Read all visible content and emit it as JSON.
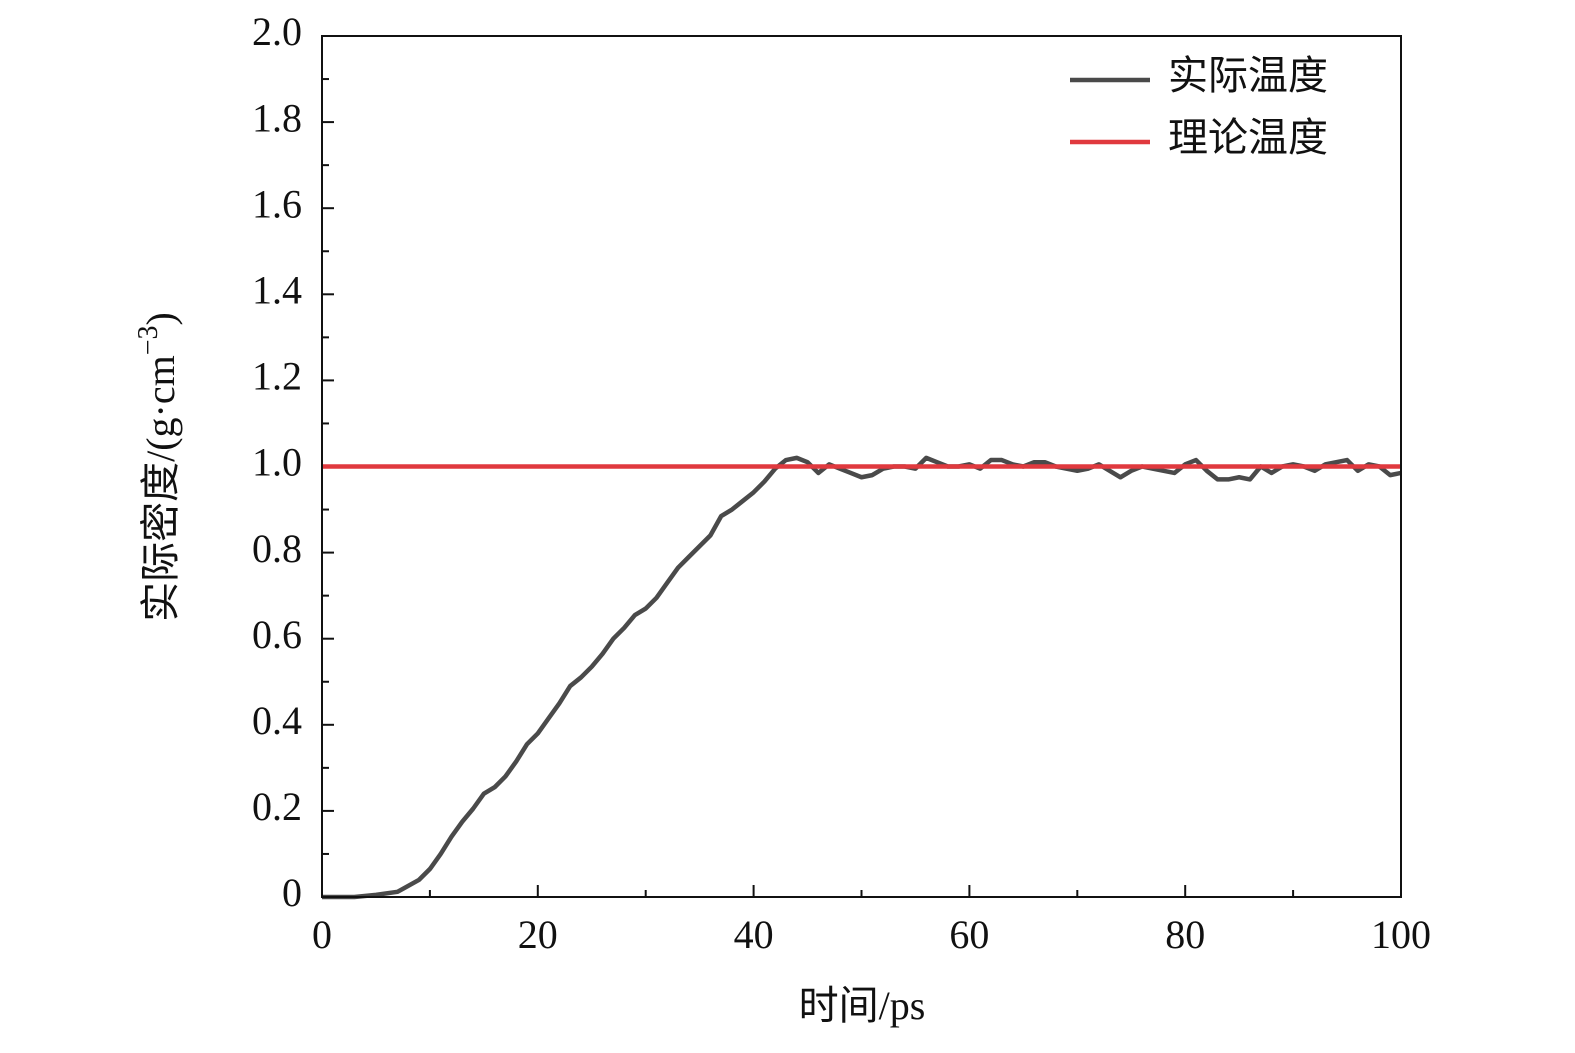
{
  "chart_data": {
    "type": "line",
    "xlabel": "时间/ps",
    "ylabel": [
      "实际密度/(g·cm",
      "−3",
      ")"
    ],
    "x": [
      0,
      3,
      5,
      7,
      9,
      10,
      11,
      12,
      13,
      14,
      15,
      16,
      17,
      18,
      19,
      20,
      21,
      22,
      23,
      24,
      25,
      26,
      27,
      28,
      29,
      30,
      31,
      32,
      33,
      34,
      35,
      36,
      37,
      38,
      39,
      40,
      41,
      42,
      43,
      44,
      45,
      46,
      47,
      48,
      49,
      50,
      51,
      52,
      53,
      54,
      55,
      56,
      57,
      58,
      59,
      60,
      61,
      62,
      63,
      64,
      65,
      66,
      67,
      68,
      69,
      70,
      71,
      72,
      73,
      74,
      75,
      76,
      77,
      78,
      79,
      80,
      81,
      82,
      83,
      84,
      85,
      86,
      87,
      88,
      89,
      90,
      91,
      92,
      93,
      94,
      95,
      96,
      97,
      98,
      99,
      100
    ],
    "series": [
      {
        "name": "实际温度",
        "color": "#4a4a4a",
        "values": [
          0,
          0,
          0.005,
          0.012,
          0.04,
          0.065,
          0.1,
          0.14,
          0.175,
          0.205,
          0.24,
          0.255,
          0.28,
          0.315,
          0.355,
          0.38,
          0.415,
          0.45,
          0.49,
          0.51,
          0.535,
          0.565,
          0.6,
          0.625,
          0.655,
          0.67,
          0.695,
          0.73,
          0.765,
          0.79,
          0.815,
          0.84,
          0.885,
          0.9,
          0.92,
          0.94,
          0.965,
          0.995,
          1.015,
          1.02,
          1.01,
          0.985,
          1.005,
          0.995,
          0.985,
          0.975,
          0.98,
          0.995,
          1.0,
          1.0,
          0.995,
          1.02,
          1.01,
          1.0,
          1.0,
          1.005,
          0.995,
          1.015,
          1.015,
          1.005,
          1.0,
          1.01,
          1.01,
          1.0,
          0.995,
          0.99,
          0.995,
          1.005,
          0.99,
          0.975,
          0.99,
          1.0,
          0.995,
          0.99,
          0.985,
          1.005,
          1.015,
          0.99,
          0.97,
          0.97,
          0.975,
          0.97,
          1.0,
          0.985,
          1.0,
          1.005,
          1.0,
          0.99,
          1.005,
          1.01,
          1.015,
          0.99,
          1.005,
          1.0,
          0.98,
          0.985
        ]
      },
      {
        "name": "理论温度",
        "color": "#e0393e",
        "x": [
          0,
          100
        ],
        "values": [
          1,
          1
        ]
      }
    ],
    "xlim": [
      0,
      100
    ],
    "xticks": [
      0,
      20,
      40,
      60,
      80,
      100
    ],
    "xminorticks": [
      10,
      30,
      50,
      70,
      90
    ],
    "ylim": [
      0,
      2
    ],
    "yticks": [
      0,
      0.2,
      0.4,
      0.6,
      0.8,
      {
        "value": 1,
        "label": "1.0"
      },
      1.2,
      1.4,
      1.6,
      1.8,
      {
        "value": 2,
        "label": "2.0"
      }
    ],
    "yminorticks": [
      0.1,
      0.3,
      0.5,
      0.7,
      0.9,
      1.1,
      1.3,
      1.5,
      1.7,
      1.9
    ],
    "legend": "upper right",
    "grid": false
  }
}
